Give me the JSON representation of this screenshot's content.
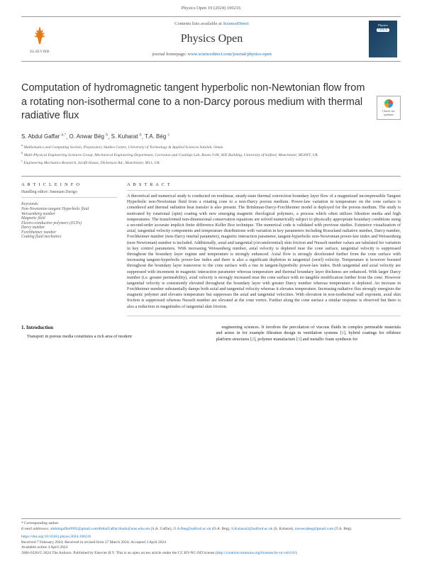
{
  "running_header": "Physics Open 19 (2024) 100216",
  "masthead": {
    "publisher": "ELSEVIER",
    "contents_prefix": "Contents lists available at ",
    "contents_link": "ScienceDirect",
    "journal": "Physics Open",
    "homepage_prefix": "journal homepage: ",
    "homepage_link": "www.sciencedirect.com/journal/physics-open",
    "cover_label1": "Physics",
    "cover_label2": "OPEN"
  },
  "updates_badge": {
    "line1": "Check for",
    "line2": "updates"
  },
  "title": "Computation of hydromagnetic tangent hyperbolic non-Newtonian flow from a rotating non-isothermal cone to a non-Darcy porous medium with thermal radiative flux",
  "authors_html": "S. Abdul Gaffar",
  "authors": [
    {
      "name": "S. Abdul Gaffar",
      "sup": "a,*"
    },
    {
      "name": "O. Anwar Bég",
      "sup": "b"
    },
    {
      "name": "S. Kuharat",
      "sup": "b"
    },
    {
      "name": "T.A. Bég",
      "sup": "c"
    }
  ],
  "affiliations": [
    {
      "sup": "a",
      "text": "Mathematics and Computing Section, Preparatory Studies Centre, University of Technology & Applied Sciences Salalah, Oman"
    },
    {
      "sup": "b",
      "text": "Multi-Physical Engineering Sciences Group, Mechanical Engineering Department, Corrosion and Coatings Lab, Room 3-08, SEE Building, University of Salford, Manchester, M54WT, UK"
    },
    {
      "sup": "c",
      "text": "Engineering Mechanics Research, Israfil House, Dickenson Rd., Manchester, M13, UK"
    }
  ],
  "article_info": {
    "heading": "A R T I C L E  I N F O",
    "editor_label": "Handling editor: Jummam Durigo",
    "keywords_label": "Keywords:",
    "keywords": [
      "Non-Newtonian tangent Hyperbolic fluid",
      "Weissenberg number",
      "Magnetic field",
      "Electro-conductive polymers (ECPs)",
      "Darcy number",
      "Forchheimer number",
      "Coating fluid mechanics"
    ]
  },
  "abstract": {
    "heading": "A B S T R A C T",
    "text": "A theoretical and numerical study is conducted on nonlinear, steady-state thermal convection boundary layer flow of a magnetized incompressible Tangent Hyperbolic non-Newtonian fluid from a rotating cone to a non-Darcy porous medium. Power-law variation in temperature on the cone surface is considered and thermal radiation heat transfer is also present. The Brinkman-Darcy-Forchheimer model is deployed for the porous medium. The study is motivated by rotational (spin) coating with new emerging magnetic rheological polymers, a process which often utilizes filtration media and high temperatures. The transformed non-dimensional conservation equations are solved numerically subject to physically appropriate boundary conditions using a second-order accurate implicit finite difference Keller Box technique. The numerical code is validated with previous studies. Extensive visualization of axial, tangential velocity components and temperature distributions with variation in key parameters including Rosseland radiative number, Darcy number, Forchheimer number (non-Darcy inertial parameter), magnetic interaction parameter, tangent-hyperbolic non-Newtonian power-law index and Weissenberg (non-Newtonian) number is included. Additionally, axial and tangential (circumferential) skin friction and Nusselt number values are tabulated for variation in key control parameters. With increasing Weissenberg number, axial velocity is depleted near the cone surface, tangential velocity is suppressed throughout the boundary layer regime and temperature is strongly enhanced. Axial flow is strongly decelerated further from the cone surface with increasing tangent-hyperbolic power-law index and there is also a significant depletion in tangential (swirl) velocity. Temperature is however boosted throughout the boundary layer transverse to the cone surface with a rise in tangent-hyperbolic power-law index. Both tangential and axial velocity are suppressed with increment in magnetic interaction parameter whereas temperature and thermal boundary layer thickness are enhanced. With larger Darcy number (i.e. greater permeability), axial velocity is strongly increased near the cone surface with no tangible modification further from the cone. However tangential velocity is consistently elevated throughout the boundary layer with greater Darcy number whereas temperature is depleted. An increase in Forchheimer number substantially damps both axial and tangential velocity whereas it elevates temperature. Increasing radiative flux strongly energizes the magnetic polymer and elevates temperature but suppresses the axial and tangential velocities. With elevation in non-isothermal wall exponent, axial skin friction is suppressed whereas Nusselt number are elevated at the cone vertex. Further along the cone surface a similar response is observed but there is also a reduction in magnitudes of tangential skin friction."
  },
  "intro": {
    "heading": "1.  Introduction",
    "col1": "Transport in porous media constitutes a rich area of modern",
    "col2": "engineering sciences. It involves the percolation of viscous fluids in complex permeable materials and arises in for example filtration design in ventilation systems [1], hybrid coatings for offshore platform structures [2], polymer manufacture [3] and metallic foam synthesis for"
  },
  "footer": {
    "corr_label": "* Corresponding author.",
    "email_label": "E-mail addresses: ",
    "emails": [
      {
        "addr": "abdulsgaffar0905@gmail.com",
        "who": ""
      },
      {
        "addr": "AbdulGaffar.Shaik@utas.edu.om",
        "who": " (S.A. Gaffar), "
      },
      {
        "addr": "O.A.Beg@salford.ac.uk",
        "who": " (O.A. Bég), "
      },
      {
        "addr": "S.Kuharat2@salford.ac.uk",
        "who": " (S. Kuharat), "
      },
      {
        "addr": "tasveerabeg@gmail.com",
        "who": " (T.A. Bég)."
      }
    ],
    "doi": "https://doi.org/10.1016/j.physo.2024.100216",
    "history": "Received 7 February 2024; Received in revised form 27 March 2024; Accepted 3 April 2024",
    "available": "Available online 4 April 2024",
    "copyright_prefix": "2666-0326/© 2024 The Authors. Published by Elsevier B.V. This is an open access article under the CC BY-NC-ND license (",
    "cc_link": "http://creativecommons.org/licenses/by-nc-nd/4.0/",
    "copyright_suffix": ")."
  }
}
